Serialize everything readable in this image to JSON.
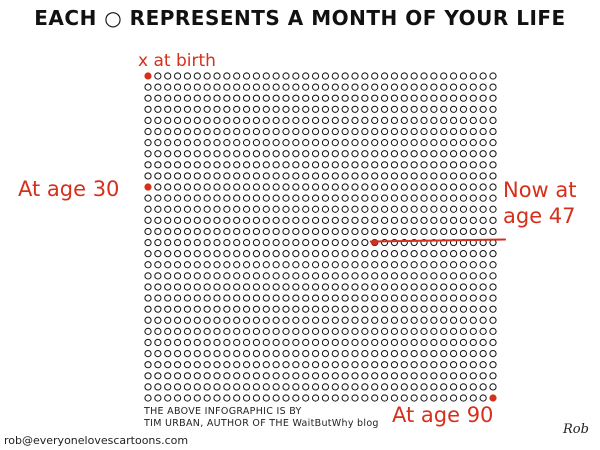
{
  "title": "EACH ○ REPRESENTS A MONTH OF YOUR LIFE",
  "annotations": {
    "birth": "x at birth",
    "age30": "At age 30",
    "now_line1": "Now at",
    "now_line2": "age 47",
    "age90": "At age 90"
  },
  "credit": {
    "line1": "THE ABOVE INFOGRAPHIC IS BY",
    "line2": "TIM URBAN, AUTHOR OF THE WaitButWhy blog"
  },
  "email": "rob@everyonelovescartoons.com",
  "signature": "Rob",
  "grid_data": {
    "columns": 36,
    "rows": 30,
    "months_per_circle": 1,
    "filled_months": [
      1,
      361,
      1080
    ],
    "current_age_years": 47,
    "current_month": 564
  },
  "colors": {
    "accent": "#d5301c",
    "ink": "#111111"
  }
}
